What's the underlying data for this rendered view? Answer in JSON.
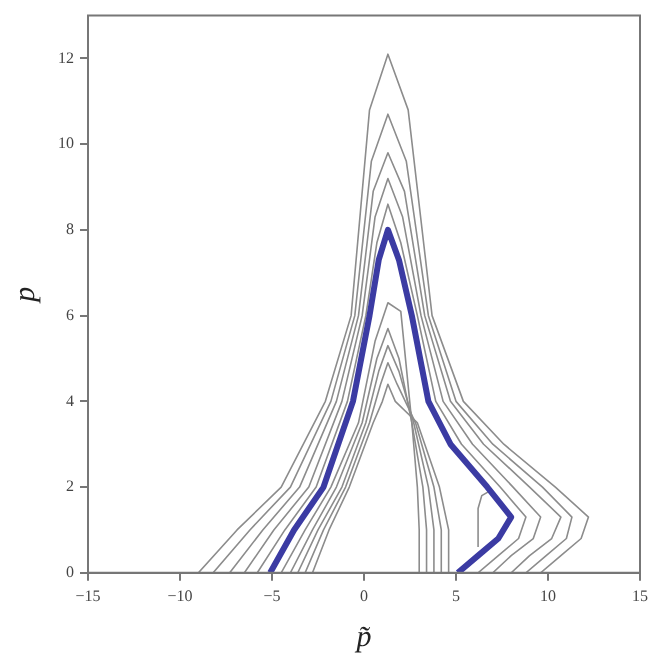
{
  "chart_data": {
    "type": "line",
    "xlabel": "p̃",
    "ylabel": "p",
    "xlim": [
      -15,
      15
    ],
    "xticks": [
      -15,
      -10,
      -5,
      0,
      5,
      10,
      15
    ],
    "ylim": [
      0,
      13
    ],
    "yticks": [
      0,
      2,
      4,
      6,
      8,
      10,
      12
    ],
    "grid": false,
    "legend": false,
    "marker": "none",
    "line_style": "solid",
    "series": [
      {
        "color": "#3b3ba3",
        "x": [
          -5.1,
          -3.8,
          -2.2,
          -0.6,
          0.3,
          0.8,
          1.3,
          1.9,
          2.6,
          3.5,
          4.7,
          6.7,
          8.0,
          7.3,
          6.2,
          5.1
        ],
        "values": [
          0,
          1,
          2,
          4,
          6,
          7.3,
          8.0,
          7.3,
          6,
          4,
          3,
          2,
          1.3,
          0.8,
          0.4,
          0
        ]
      },
      {
        "color": "#8c8c8c",
        "x": [
          -5.8,
          -4.3,
          -2.6,
          -0.9,
          0.1,
          0.7,
          1.3,
          2.0,
          2.9,
          3.9,
          5.3,
          7.4,
          8.8,
          8.4,
          7.3,
          6.2
        ],
        "values": [
          0,
          1,
          2,
          4,
          6,
          7.7,
          8.6,
          7.7,
          6,
          4,
          3,
          2,
          1.3,
          0.8,
          0.4,
          0
        ]
      },
      {
        "color": "#8c8c8c",
        "x": [
          -6.5,
          -4.9,
          -3.0,
          -1.2,
          -0.1,
          0.6,
          1.3,
          2.1,
          3.1,
          4.3,
          5.9,
          8.1,
          9.6,
          9.2,
          8.0,
          7.0
        ],
        "values": [
          0,
          1,
          2,
          4,
          6,
          8.3,
          9.2,
          8.3,
          6,
          4,
          3,
          2,
          1.3,
          0.8,
          0.4,
          0
        ]
      },
      {
        "color": "#8c8c8c",
        "x": [
          -7.3,
          -5.5,
          -3.5,
          -1.5,
          -0.3,
          0.5,
          1.3,
          2.2,
          3.3,
          4.7,
          6.5,
          9.0,
          10.7,
          10.2,
          9.0,
          8.0
        ],
        "values": [
          0,
          1,
          2,
          4,
          6,
          8.9,
          9.8,
          8.9,
          6,
          4,
          3,
          2,
          1.3,
          0.8,
          0.4,
          0
        ]
      },
      {
        "color": "#8c8c8c",
        "x": [
          -8.2,
          -6.2,
          -4.0,
          -1.8,
          -0.5,
          0.4,
          1.3,
          2.3,
          3.5,
          5.0,
          7.0,
          9.7,
          11.3,
          11.0,
          9.9,
          8.8
        ],
        "values": [
          0,
          1,
          2,
          4,
          6,
          9.6,
          10.7,
          9.6,
          6,
          4,
          3,
          2,
          1.3,
          0.8,
          0.4,
          0
        ]
      },
      {
        "color": "#8c8c8c",
        "x": [
          -9.0,
          -6.9,
          -4.5,
          -2.1,
          -0.7,
          0.3,
          1.3,
          2.4,
          3.7,
          5.4,
          7.6,
          10.4,
          12.2,
          11.8,
          10.7,
          9.6
        ],
        "values": [
          0,
          1,
          2,
          4,
          6,
          10.8,
          12.1,
          10.8,
          6,
          4,
          3,
          2,
          1.3,
          0.8,
          0.4,
          0
        ]
      },
      {
        "color": "#8c8c8c",
        "x": [
          -4.5,
          -3.2,
          -1.8,
          -0.3,
          0.6,
          1.3,
          2.0,
          2.6,
          2.9,
          3.0,
          3.0
        ],
        "values": [
          0,
          1,
          2,
          3.5,
          5.4,
          6.3,
          6.1,
          3.5,
          2,
          1,
          0
        ]
      },
      {
        "color": "#8c8c8c",
        "x": [
          -4.0,
          -2.8,
          -1.5,
          -0.1,
          0.7,
          1.3,
          1.9,
          2.6,
          3.2,
          3.4,
          3.4
        ],
        "values": [
          0,
          1,
          2,
          3.5,
          5.0,
          5.7,
          5.0,
          3.5,
          2,
          1,
          0
        ]
      },
      {
        "color": "#8c8c8c",
        "x": [
          -3.6,
          -2.5,
          -1.2,
          0.1,
          0.8,
          1.3,
          1.9,
          2.7,
          3.5,
          3.8,
          3.8
        ],
        "values": [
          0,
          1,
          2,
          3.5,
          4.7,
          5.3,
          4.7,
          3.5,
          2,
          1,
          0
        ]
      },
      {
        "color": "#8c8c8c",
        "x": [
          -3.2,
          -2.2,
          -1.0,
          0.3,
          0.9,
          1.3,
          1.8,
          2.8,
          3.8,
          4.2,
          4.2
        ],
        "values": [
          0,
          1,
          2,
          3.5,
          4.4,
          4.9,
          4.4,
          3.5,
          2,
          1,
          0
        ]
      },
      {
        "color": "#8c8c8c",
        "x": [
          -2.8,
          -1.9,
          -0.8,
          0.5,
          1.0,
          1.3,
          1.7,
          2.9,
          4.1,
          4.6,
          4.6
        ],
        "values": [
          0,
          1,
          2,
          3.5,
          4.0,
          4.4,
          4.0,
          3.5,
          2,
          1,
          0
        ]
      },
      {
        "color": "#8c8c8c",
        "x": [
          6.2,
          6.2,
          6.4,
          6.8
        ],
        "values": [
          0.6,
          1.5,
          1.8,
          1.9
        ]
      }
    ]
  }
}
